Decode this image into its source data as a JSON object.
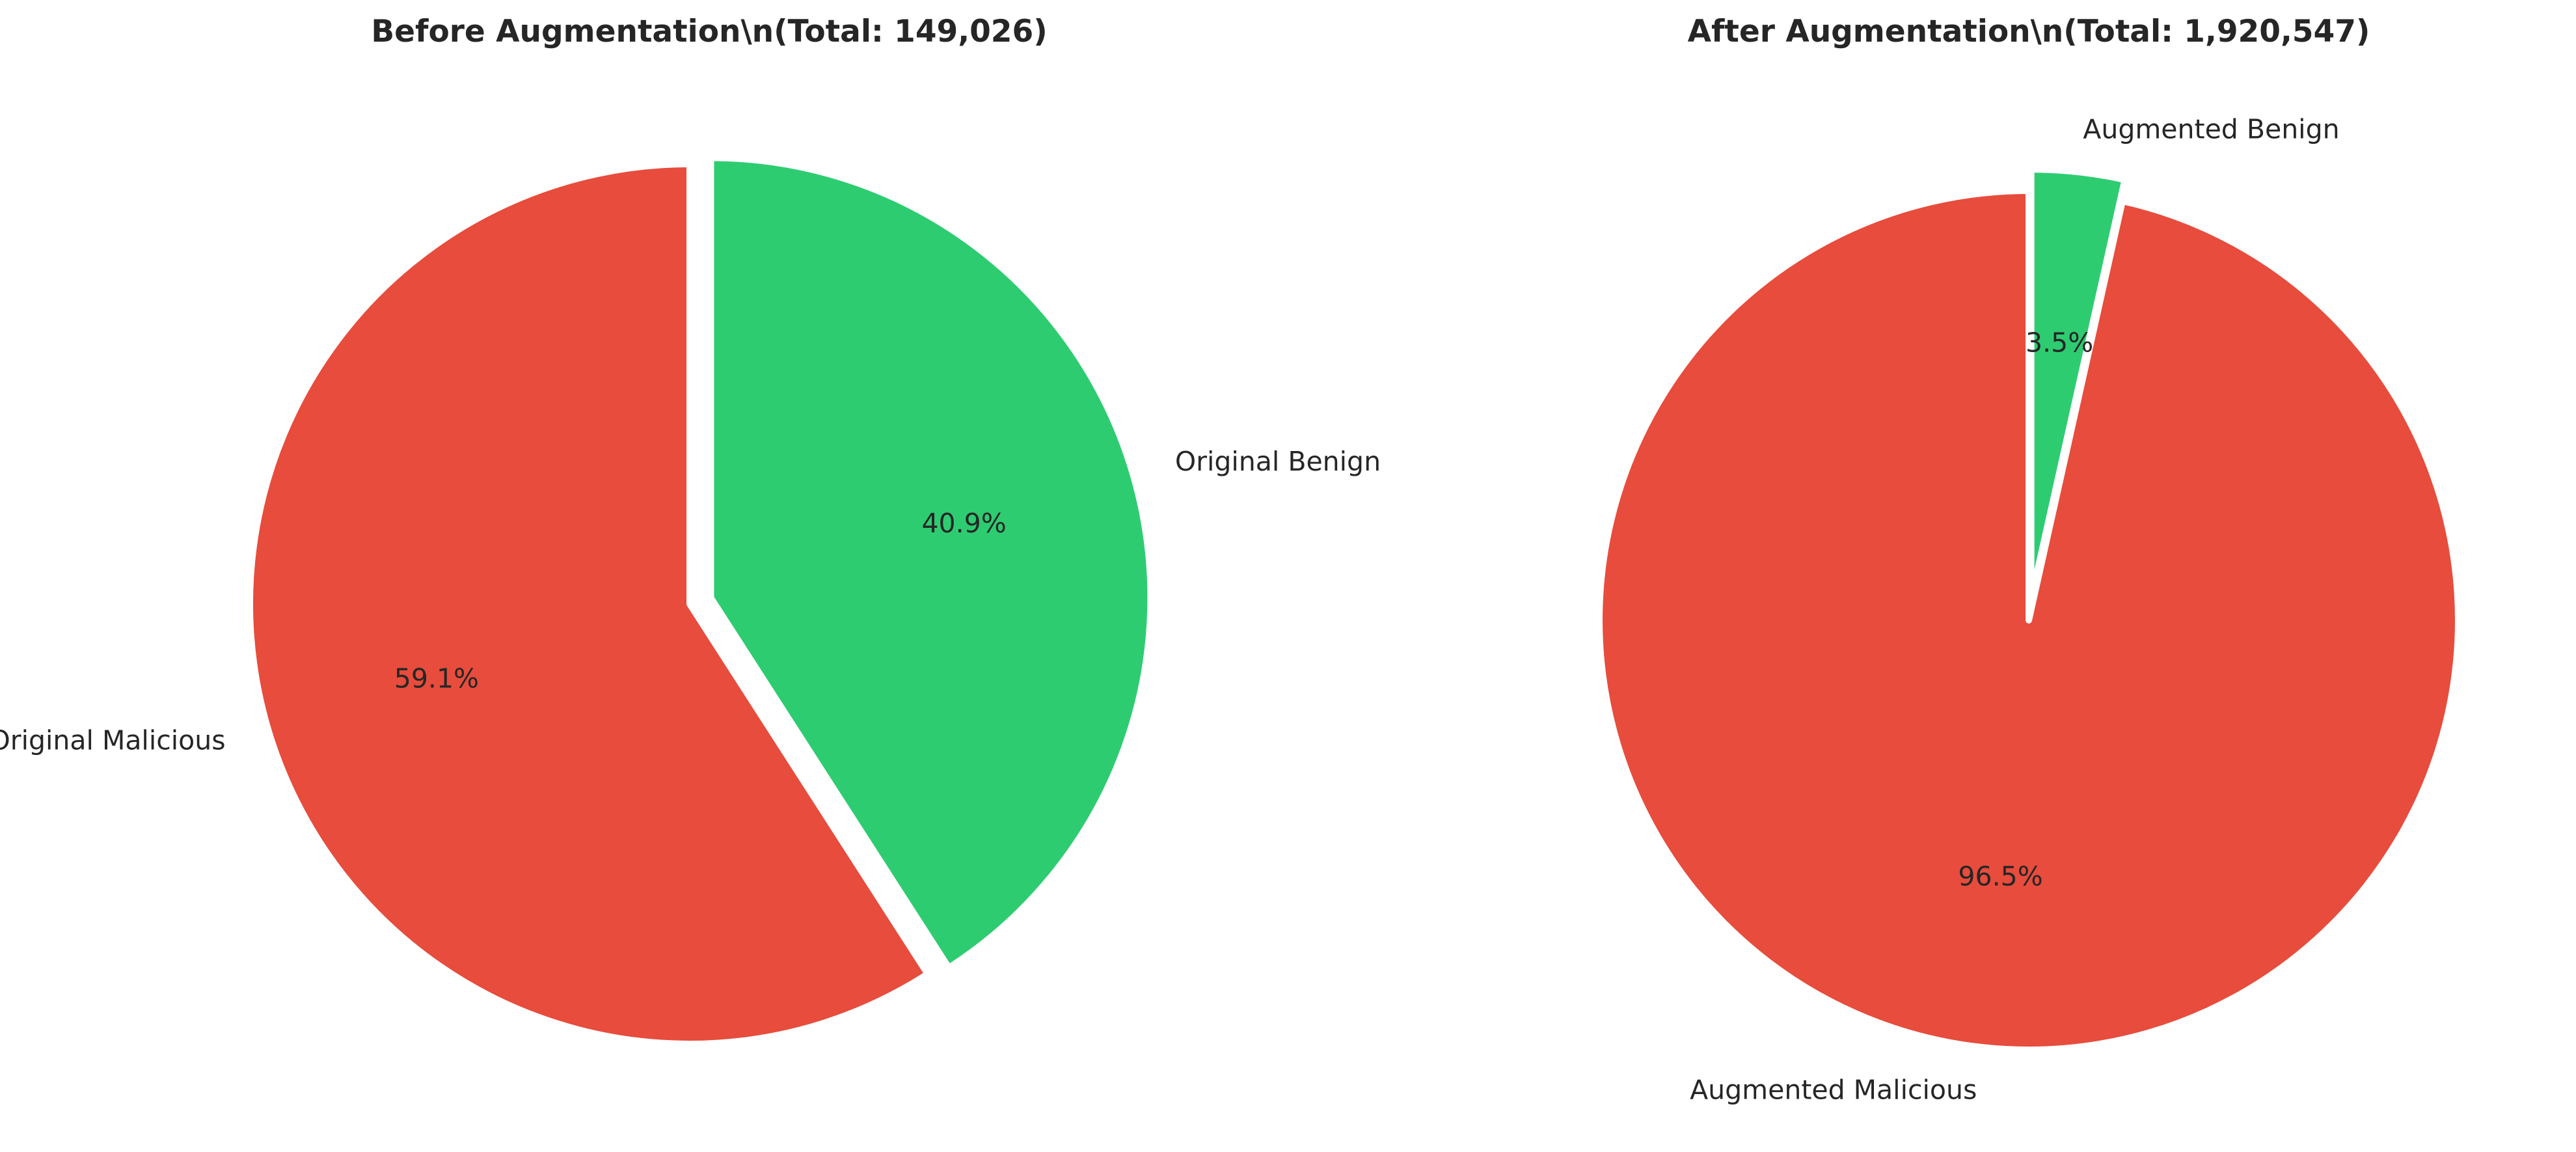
{
  "chart_data": [
    {
      "type": "pie",
      "title": "Before Augmentation\\n(Total: 149,026)",
      "start_angle_deg": 90,
      "direction": "clockwise",
      "slices": [
        {
          "label": "Original Benign",
          "value": 40.9,
          "pct_text": "40.9%",
          "color": "#2ecc71",
          "explode": 0.05
        },
        {
          "label": "Original Malicious",
          "value": 59.1,
          "pct_text": "59.1%",
          "color": "#e74c3c",
          "explode": 0
        }
      ]
    },
    {
      "type": "pie",
      "title": "After Augmentation\\n(Total: 1,920,547)",
      "start_angle_deg": 90,
      "direction": "clockwise",
      "slices": [
        {
          "label": "Augmented Benign",
          "value": 3.5,
          "pct_text": "3.5%",
          "color": "#2ecc71",
          "explode": 0.05
        },
        {
          "label": "Augmented Malicious",
          "value": 96.5,
          "pct_text": "96.5%",
          "color": "#e74c3c",
          "explode": 0
        }
      ]
    }
  ]
}
